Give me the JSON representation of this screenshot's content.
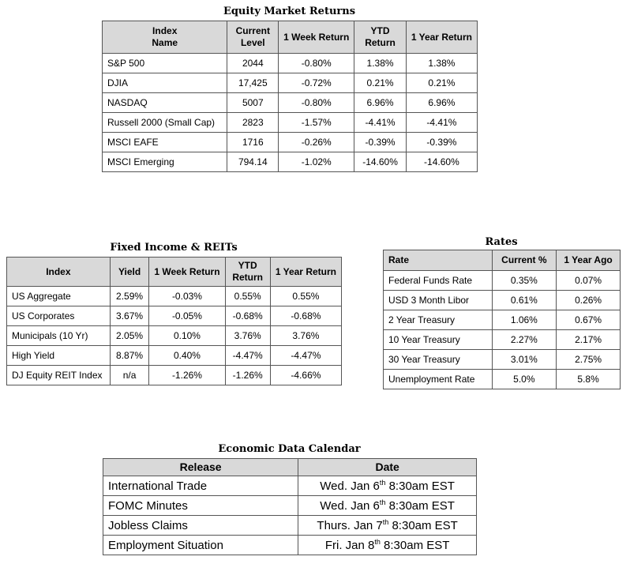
{
  "equity": {
    "title": "Equity Market Returns",
    "headers": [
      "Index Name",
      "Current Level",
      "1 Week Return",
      "YTD Return",
      "1 Year Return"
    ],
    "rows": [
      [
        "S&P 500",
        "2044",
        "-0.80%",
        "1.38%",
        "1.38%"
      ],
      [
        "DJIA",
        "17,425",
        "-0.72%",
        "0.21%",
        "0.21%"
      ],
      [
        "NASDAQ",
        "5007",
        "-0.80%",
        "6.96%",
        "6.96%"
      ],
      [
        "Russell 2000 (Small Cap)",
        "2823",
        "-1.57%",
        "-4.41%",
        "-4.41%"
      ],
      [
        "MSCI EAFE",
        "1716",
        "-0.26%",
        "-0.39%",
        "-0.39%"
      ],
      [
        "MSCI Emerging",
        "794.14",
        "-1.02%",
        "-14.60%",
        "-14.60%"
      ]
    ]
  },
  "fixed_income": {
    "title": "Fixed Income & REITs",
    "headers": [
      "Index",
      "Yield",
      "1 Week Return",
      "YTD Return",
      "1 Year Return"
    ],
    "rows": [
      [
        "US Aggregate",
        "2.59%",
        "-0.03%",
        "0.55%",
        "0.55%"
      ],
      [
        "US Corporates",
        "3.67%",
        "-0.05%",
        "-0.68%",
        "-0.68%"
      ],
      [
        "Municipals (10 Yr)",
        "2.05%",
        "0.10%",
        "3.76%",
        "3.76%"
      ],
      [
        "High Yield",
        "8.87%",
        "0.40%",
        "-4.47%",
        "-4.47%"
      ],
      [
        "DJ Equity REIT Index",
        "n/a",
        "-1.26%",
        "-1.26%",
        "-4.66%"
      ]
    ]
  },
  "rates": {
    "title": "Rates",
    "headers": [
      "Rate",
      "Current %",
      "1 Year Ago"
    ],
    "rows": [
      [
        "Federal Funds Rate",
        "0.35%",
        "0.07%"
      ],
      [
        "USD 3 Month Libor",
        "0.61%",
        "0.26%"
      ],
      [
        "2 Year Treasury",
        "1.06%",
        "0.67%"
      ],
      [
        "10 Year Treasury",
        "2.27%",
        "2.17%"
      ],
      [
        "30 Year Treasury",
        "3.01%",
        "2.75%"
      ],
      [
        "Unemployment Rate",
        "5.0%",
        "5.8%"
      ]
    ]
  },
  "economic_calendar": {
    "title": "Economic Data Calendar",
    "headers": [
      "Release",
      "Date"
    ],
    "rows": [
      {
        "release": "International Trade",
        "date_prefix": "Wed. Jan 6",
        "date_sup": "th",
        "date_suffix": " 8:30am EST"
      },
      {
        "release": "FOMC Minutes",
        "date_prefix": "Wed. Jan 6",
        "date_sup": "th",
        "date_suffix": " 8:30am EST"
      },
      {
        "release": "Jobless Claims",
        "date_prefix": "Thurs. Jan 7",
        "date_sup": "th",
        "date_suffix": " 8:30am EST"
      },
      {
        "release": "Employment Situation",
        "date_prefix": "Fri. Jan 8",
        "date_sup": "th",
        "date_suffix": " 8:30am EST"
      }
    ]
  }
}
